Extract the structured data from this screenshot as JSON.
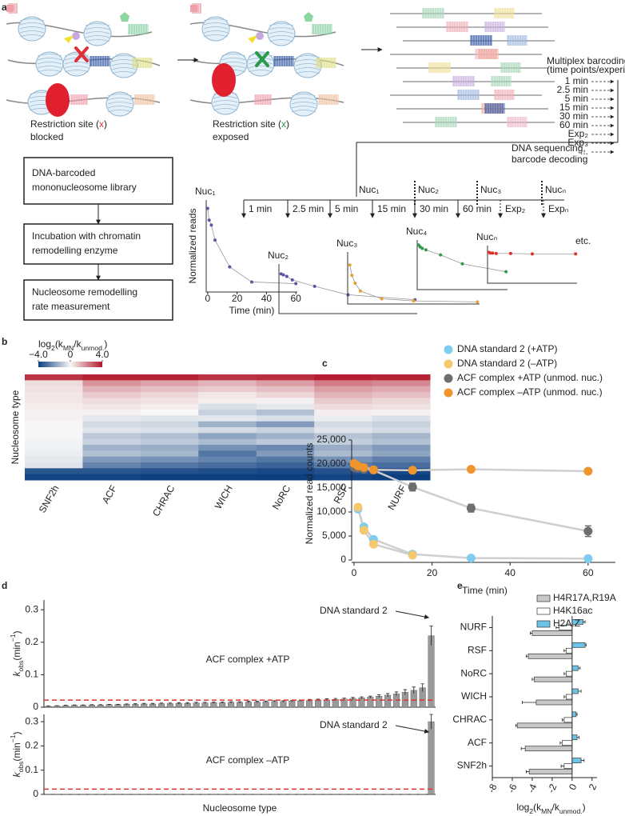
{
  "panel_labels": [
    "a",
    "b",
    "c",
    "d",
    "e"
  ],
  "diagram": {
    "blocked": [
      {
        "text": "Restriction site ("
      },
      {
        "text": "x",
        "color": "#e0303a"
      },
      {
        "text": ")"
      }
    ],
    "blocked_2": "blocked",
    "exposed": [
      {
        "text": "Restriction site ("
      },
      {
        "text": "x",
        "color": "#2a9a4a"
      },
      {
        "text": ")"
      }
    ],
    "exposed_2": "exposed",
    "barcoding": [
      "Multiplex barcoding",
      "(time points/experiments)"
    ],
    "barcodes": [
      "1 min",
      "2.5 min",
      "5 min",
      "15 min",
      "30 min",
      "60 min",
      "Exp₂",
      "Exp₃",
      "..."
    ],
    "sequencing": [
      "DNA sequencing,",
      "barcode decoding"
    ],
    "flow": [
      [
        "DNA-barcoded",
        "mononucleosome library"
      ],
      [
        "Incubation with chromatin",
        "remodelling enzyme"
      ],
      [
        "Nucleosome remodelling",
        "rate measurement"
      ]
    ],
    "nucs": [
      "Nuc₁",
      "Nuc₂",
      "Nuc₃",
      "Nucₙ"
    ],
    "timeline": [
      "1 min",
      "2.5 min",
      "5 min",
      "15 min",
      "30 min",
      "60 min",
      "Exp₂",
      "Expₙ"
    ],
    "etc": "etc."
  },
  "chart_data": [
    {
      "type": "line",
      "title": "Nuc₁",
      "x": [
        0,
        1,
        2.5,
        5,
        15,
        30,
        60
      ],
      "values": [
        1.0,
        0.86,
        0.8,
        0.62,
        0.3,
        0.12,
        0.1
      ],
      "color": "#5b57a6",
      "xlim": [
        -1,
        61
      ],
      "ylim": [
        0,
        1.1
      ],
      "xticks": [
        0,
        20,
        40,
        60
      ],
      "xlabel": "Time (min)",
      "ylabel": "Normalized reads"
    },
    {
      "type": "line",
      "title": "Nuc₂",
      "x": [
        0,
        1,
        2.5,
        5,
        15,
        30,
        60
      ],
      "values": [
        0.8,
        0.78,
        0.75,
        0.68,
        0.55,
        0.38,
        0.28
      ],
      "color": "#5b57a6",
      "xlim": [
        -1,
        61
      ],
      "ylim": [
        0,
        1
      ]
    },
    {
      "type": "line",
      "title": "Nuc₃",
      "x": [
        0,
        1,
        2.5,
        5,
        15,
        30,
        60
      ],
      "values": [
        0.75,
        0.55,
        0.4,
        0.25,
        0.1,
        0.06,
        0.04
      ],
      "color": "#e8a030",
      "xlim": [
        -1,
        61
      ],
      "ylim": [
        0,
        1
      ]
    },
    {
      "type": "line",
      "title": "Nuc₄",
      "x": [
        0,
        1,
        2.5,
        5,
        15,
        30,
        60
      ],
      "values": [
        0.9,
        0.86,
        0.83,
        0.8,
        0.7,
        0.52,
        0.36
      ],
      "color": "#2e9a4a",
      "xlim": [
        -1,
        61
      ],
      "ylim": [
        0,
        1
      ]
    },
    {
      "type": "line",
      "title": "Nucₙ",
      "x": [
        0,
        1,
        2.5,
        5,
        15,
        30,
        60
      ],
      "values": [
        0.82,
        0.8,
        0.8,
        0.79,
        0.79,
        0.78,
        0.78
      ],
      "color": "#e0302a",
      "xlim": [
        -1,
        61
      ],
      "ylim": [
        0,
        1
      ]
    },
    {
      "type": "heatmap",
      "title": [
        {
          "text": "log"
        },
        {
          "text": "2",
          "style": "sub"
        },
        {
          "text": "(k"
        },
        {
          "text": "MN",
          "style": "sub"
        },
        {
          "text": "/k"
        },
        {
          "text": "unmod.",
          "style": "sub"
        },
        {
          "text": ")"
        }
      ],
      "categories": [
        "SNF2h",
        "ACF",
        "CHRAC",
        "WICH",
        "NoRC",
        "RSF",
        "NURF"
      ],
      "ylabel": "Nucleosome type",
      "zlim": [
        -4,
        4
      ],
      "colors": [
        "#0d3f80",
        "#f7f7f7",
        "#b2182b"
      ],
      "zticks": [
        {
          "value": -4,
          "label": "−4.0"
        },
        0,
        {
          "value": 4,
          "label": "4.0"
        }
      ],
      "values": [
        [
          3.5,
          3.8,
          3.8,
          3.5,
          3.6,
          3.9,
          3.8
        ],
        [
          0.5,
          1.8,
          1.5,
          1.2,
          1.6,
          2.2,
          2.0
        ],
        [
          0.4,
          1.2,
          1.0,
          0.8,
          1.0,
          1.6,
          1.4
        ],
        [
          0.3,
          0.8,
          0.6,
          0.3,
          0.6,
          1.2,
          1.0
        ],
        [
          0.3,
          0.5,
          0.4,
          0.2,
          0.1,
          0.8,
          0.6
        ],
        [
          0.2,
          0.3,
          0.2,
          -0.5,
          -0.3,
          0.5,
          0.4
        ],
        [
          0.1,
          0.1,
          0.0,
          -0.8,
          -1.2,
          0.2,
          0.1
        ],
        [
          0.1,
          -0.3,
          -0.4,
          -0.3,
          -0.5,
          -0.2,
          -0.5
        ],
        [
          0.0,
          -0.6,
          -0.7,
          -1.5,
          -2.0,
          -0.6,
          -0.8
        ],
        [
          0.0,
          -0.4,
          -0.5,
          -0.6,
          -0.8,
          -0.4,
          -0.6
        ],
        [
          0.0,
          -1.0,
          -1.2,
          -1.8,
          -1.5,
          -1.1,
          -1.4
        ],
        [
          -0.1,
          -0.8,
          -1.0,
          -1.3,
          -1.0,
          -0.9,
          -1.2
        ],
        [
          -0.1,
          -1.5,
          -1.6,
          -2.2,
          -2.4,
          -1.6,
          -2.0
        ],
        [
          -0.2,
          -1.2,
          -1.4,
          -2.8,
          -2.0,
          -1.3,
          -1.8
        ],
        [
          -0.3,
          -2.0,
          -2.2,
          -2.5,
          -2.8,
          -2.2,
          -2.6
        ],
        [
          -0.4,
          -2.5,
          -2.8,
          -3.0,
          -3.2,
          -2.7,
          -3.0
        ],
        [
          -3.5,
          -3.5,
          -3.6,
          -3.7,
          -3.8,
          -3.6,
          -3.8
        ],
        [
          -3.9,
          -3.9,
          -4.0,
          -4.0,
          -4.0,
          -3.9,
          -4.0
        ]
      ]
    },
    {
      "type": "scatter",
      "xlabel": "Time (min)",
      "ylabel": "Normalized read counts",
      "xlim": [
        0,
        67
      ],
      "ylim": [
        0,
        25000
      ],
      "xticks": [
        0,
        20,
        40,
        60
      ],
      "yticks": [
        0,
        {
          "value": 5000,
          "label": "5,000"
        },
        {
          "value": 10000,
          "label": "10,000"
        },
        {
          "value": 15000,
          "label": "15,000"
        },
        {
          "value": 20000,
          "label": "20,000"
        },
        {
          "value": 25000,
          "label": "25,000"
        }
      ],
      "fit_color": "#cfcfcf",
      "series": [
        {
          "name": "DNA standard 2 (+ATP)",
          "color": "#7fcdee",
          "x": [
            1,
            2.5,
            5,
            15,
            30,
            60
          ],
          "values": [
            10600,
            6900,
            4300,
            1200,
            400,
            300
          ]
        },
        {
          "name": "DNA standard 2 (–ATP)",
          "color": "#f5c86e",
          "x": [
            1,
            2.5,
            5,
            15
          ],
          "values": [
            11000,
            6200,
            3300,
            1000
          ]
        },
        {
          "name": "ACF complex +ATP (unmod. nuc.)",
          "color": "#6e6e6e",
          "x": [
            0,
            1,
            2.5,
            5,
            15,
            30,
            60
          ],
          "values": [
            19300,
            19100,
            18900,
            18700,
            15200,
            10800,
            6000
          ],
          "errors": [
            400,
            300,
            300,
            300,
            800,
            800,
            1100
          ]
        },
        {
          "name": "ACF complex –ATP (unmod. nuc.)",
          "color": "#f0952e",
          "x": [
            0,
            1,
            2.5,
            5,
            15,
            30,
            60
          ],
          "values": [
            20100,
            19600,
            19300,
            18800,
            18700,
            18900,
            18500
          ]
        }
      ]
    },
    {
      "type": "bar",
      "label": "ACF complex +ATP",
      "annotation": "DNA standard 2",
      "ylabel": [
        {
          "text": "k",
          "style": "i"
        },
        {
          "text": "obs",
          "style": "sub"
        },
        {
          "text": "(min"
        },
        {
          "text": "−1",
          "style": "sup"
        },
        {
          "text": ")"
        }
      ],
      "ylim": [
        0,
        0.33
      ],
      "yticks": [
        0,
        0.1,
        0.2,
        0.3
      ],
      "color": "#9a9a9a",
      "threshold": 0.022,
      "threshold_color": "#e03030",
      "values": [
        0.003,
        0.004,
        0.005,
        0.006,
        0.006,
        0.007,
        0.007,
        0.008,
        0.008,
        0.009,
        0.009,
        0.01,
        0.01,
        0.011,
        0.011,
        0.012,
        0.012,
        0.013,
        0.013,
        0.014,
        0.014,
        0.015,
        0.015,
        0.016,
        0.016,
        0.017,
        0.018,
        0.018,
        0.019,
        0.02,
        0.021,
        0.022,
        0.023,
        0.024,
        0.025,
        0.027,
        0.029,
        0.031,
        0.034,
        0.037,
        0.041,
        0.046,
        0.052,
        0.06,
        0.22
      ],
      "errors": [
        0.001,
        0.001,
        0.001,
        0.001,
        0.001,
        0.001,
        0.001,
        0.001,
        0.001,
        0.001,
        0.002,
        0.002,
        0.002,
        0.002,
        0.002,
        0.002,
        0.002,
        0.002,
        0.002,
        0.002,
        0.002,
        0.002,
        0.002,
        0.002,
        0.002,
        0.002,
        0.002,
        0.002,
        0.002,
        0.002,
        0.003,
        0.003,
        0.003,
        0.003,
        0.003,
        0.003,
        0.003,
        0.003,
        0.004,
        0.005,
        0.006,
        0.008,
        0.01,
        0.012,
        0.03
      ]
    },
    {
      "type": "bar",
      "label": "ACF complex –ATP",
      "annotation": "DNA standard 2",
      "xlabel": "Nucleosome type",
      "ylabel": [
        {
          "text": "k",
          "style": "i"
        },
        {
          "text": "obs",
          "style": "sub"
        },
        {
          "text": "(min"
        },
        {
          "text": "−1",
          "style": "sup"
        },
        {
          "text": ")"
        }
      ],
      "ylim": [
        0,
        0.33
      ],
      "yticks": [
        0,
        0.1,
        0.2,
        0.3
      ],
      "color": "#9a9a9a",
      "threshold": 0.022,
      "threshold_color": "#e03030",
      "values": [
        0.001,
        0.001,
        0.001,
        0.001,
        0.001,
        0.001,
        0.001,
        0.001,
        0.001,
        0.001,
        0.001,
        0.001,
        0.001,
        0.001,
        0.001,
        0.001,
        0.001,
        0.001,
        0.001,
        0.001,
        0.001,
        0.001,
        0.001,
        0.001,
        0.001,
        0.001,
        0.001,
        0.001,
        0.001,
        0.001,
        0.001,
        0.001,
        0.001,
        0.001,
        0.001,
        0.001,
        0.001,
        0.001,
        0.001,
        0.001,
        0.001,
        0.001,
        0.001,
        0.001,
        0.3
      ],
      "errors": [
        null,
        null,
        null,
        null,
        null,
        null,
        null,
        null,
        null,
        null,
        null,
        null,
        null,
        null,
        null,
        null,
        null,
        null,
        null,
        null,
        null,
        null,
        null,
        null,
        null,
        null,
        null,
        null,
        null,
        null,
        null,
        null,
        null,
        null,
        null,
        null,
        null,
        null,
        null,
        null,
        null,
        null,
        null,
        null,
        0.03
      ]
    },
    {
      "type": "barh",
      "categories": [
        "NURF",
        "RSF",
        "NoRC",
        "WICH",
        "CHRAC",
        "ACF",
        "SNF2h"
      ],
      "xlim": [
        -8,
        2.5
      ],
      "xticks": [
        -8,
        -6,
        -4,
        -2,
        0,
        2
      ],
      "xlabel": [
        {
          "text": "log"
        },
        {
          "text": "2",
          "style": "sub"
        },
        {
          "text": "(k"
        },
        {
          "text": "MN",
          "style": "sub"
        },
        {
          "text": "/k"
        },
        {
          "text": "unmod.",
          "style": "sub"
        },
        {
          "text": ")"
        }
      ],
      "series": [
        {
          "name": "H4R17A,R19A",
          "color": "#c8c8c8",
          "values": [
            -4.0,
            -4.4,
            -3.8,
            -3.6,
            -5.5,
            -4.7,
            -4.3
          ],
          "errors": [
            0.2,
            0.2,
            0.2,
            1.4,
            0.15,
            0.4,
            0.3
          ]
        },
        {
          "name": "H4K16ac",
          "color": "#ffffff",
          "values": [
            -1.3,
            -0.6,
            -0.6,
            -0.6,
            -0.8,
            -1.0,
            -0.8
          ],
          "errors": [
            0.3,
            0.2,
            0.2,
            0.2,
            0.2,
            0.2,
            0.3
          ]
        },
        {
          "name": "H2A.Z",
          "color": "#6cc4e8",
          "values": [
            1.1,
            1.3,
            0.6,
            0.6,
            0.4,
            0.5,
            0.9
          ],
          "errors": [
            0.2,
            0.1,
            0.2,
            0.3,
            0.1,
            0.2,
            0.3
          ]
        }
      ]
    }
  ]
}
